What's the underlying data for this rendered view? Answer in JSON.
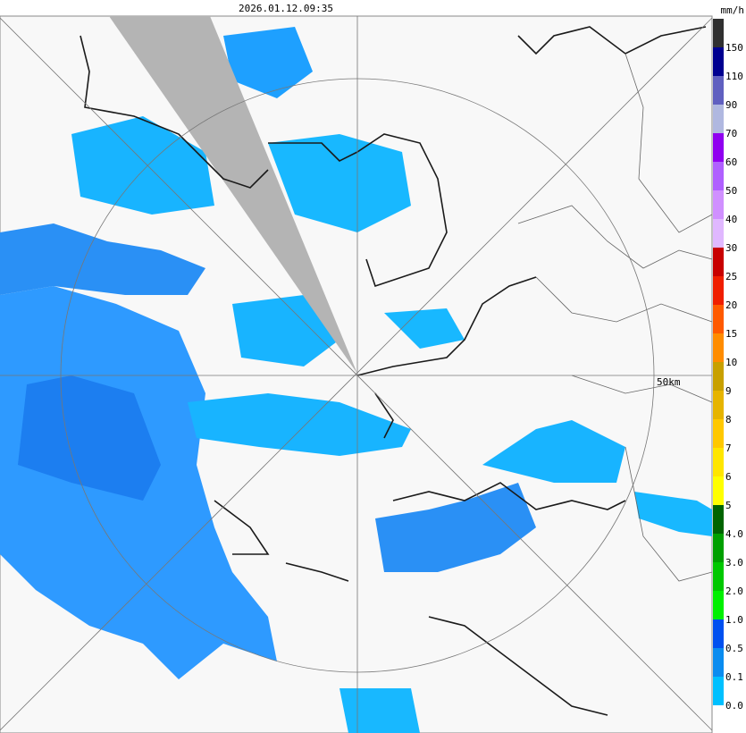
{
  "header": {
    "timestamp": "2026.01.12.09:35",
    "unit": "mm/h"
  },
  "map": {
    "range_label": "50km"
  },
  "legend": {
    "bins": [
      {
        "label": "0.0",
        "color": "#00c0ff"
      },
      {
        "label": "0.1",
        "color": "#0a8cf0"
      },
      {
        "label": "0.5",
        "color": "#0050f0"
      },
      {
        "label": "1.0",
        "color": "#00f000"
      },
      {
        "label": "2.0",
        "color": "#00c800"
      },
      {
        "label": "3.0",
        "color": "#00a000"
      },
      {
        "label": "4.0",
        "color": "#006400"
      },
      {
        "label": "5",
        "color": "#ffff00"
      },
      {
        "label": "6",
        "color": "#ffe600"
      },
      {
        "label": "7",
        "color": "#ffc800"
      },
      {
        "label": "8",
        "color": "#e6b400"
      },
      {
        "label": "9",
        "color": "#c8a000"
      },
      {
        "label": "10",
        "color": "#ff8c00"
      },
      {
        "label": "15",
        "color": "#ff5a00"
      },
      {
        "label": "20",
        "color": "#f01e00"
      },
      {
        "label": "25",
        "color": "#c80000"
      },
      {
        "label": "30",
        "color": "#e0b8ff"
      },
      {
        "label": "40",
        "color": "#d090ff"
      },
      {
        "label": "50",
        "color": "#b060ff"
      },
      {
        "label": "60",
        "color": "#9000f0"
      },
      {
        "label": "70",
        "color": "#b0b8e0"
      },
      {
        "label": "90",
        "color": "#6060c0"
      },
      {
        "label": "110",
        "color": "#000090"
      },
      {
        "label": "150",
        "color": "#303030"
      }
    ]
  }
}
